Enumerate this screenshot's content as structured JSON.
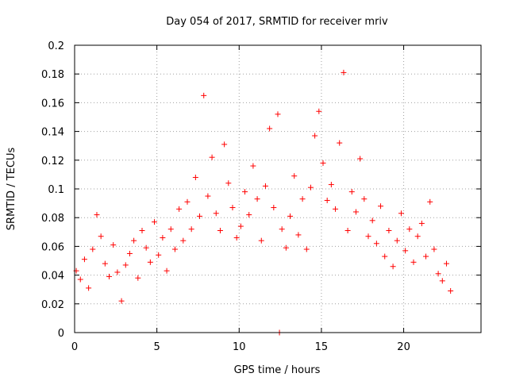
{
  "chart_data": {
    "type": "scatter",
    "title": "Day 054 of 2017, SRMTID for receiver mriv",
    "xlabel": "GPS time / hours",
    "ylabel": "SRMTID / TECUs",
    "xlim": [
      0,
      24.7
    ],
    "ylim": [
      0,
      0.2
    ],
    "x_ticks": [
      0,
      5,
      10,
      15,
      20
    ],
    "x_tick_labels": [
      "0",
      "5",
      "10",
      "15",
      "20"
    ],
    "y_ticks": [
      0,
      0.02,
      0.04,
      0.06,
      0.08,
      0.1,
      0.12,
      0.14,
      0.16,
      0.18,
      0.2
    ],
    "y_tick_labels": [
      "0",
      "0.02",
      "0.04",
      "0.06",
      "0.08",
      "0.1",
      "0.12",
      "0.14",
      "0.16",
      "0.18",
      "0.2"
    ],
    "grid": true,
    "marker": "+",
    "color": "#ff0000",
    "series": [
      {
        "name": "SRMTID",
        "points": [
          [
            0.1,
            0.043
          ],
          [
            0.35,
            0.037
          ],
          [
            0.6,
            0.051
          ],
          [
            0.85,
            0.031
          ],
          [
            1.1,
            0.058
          ],
          [
            1.35,
            0.082
          ],
          [
            1.6,
            0.067
          ],
          [
            1.85,
            0.048
          ],
          [
            2.1,
            0.039
          ],
          [
            2.35,
            0.061
          ],
          [
            2.6,
            0.042
          ],
          [
            2.85,
            0.022
          ],
          [
            3.1,
            0.047
          ],
          [
            3.35,
            0.055
          ],
          [
            3.6,
            0.064
          ],
          [
            3.85,
            0.038
          ],
          [
            4.1,
            0.071
          ],
          [
            4.35,
            0.059
          ],
          [
            4.6,
            0.049
          ],
          [
            4.85,
            0.077
          ],
          [
            5.1,
            0.054
          ],
          [
            5.35,
            0.066
          ],
          [
            5.6,
            0.043
          ],
          [
            5.85,
            0.072
          ],
          [
            6.1,
            0.058
          ],
          [
            6.35,
            0.086
          ],
          [
            6.6,
            0.064
          ],
          [
            6.85,
            0.091
          ],
          [
            7.1,
            0.072
          ],
          [
            7.35,
            0.108
          ],
          [
            7.6,
            0.081
          ],
          [
            7.85,
            0.165
          ],
          [
            8.1,
            0.095
          ],
          [
            8.35,
            0.122
          ],
          [
            8.6,
            0.083
          ],
          [
            8.85,
            0.071
          ],
          [
            9.1,
            0.131
          ],
          [
            9.35,
            0.104
          ],
          [
            9.6,
            0.087
          ],
          [
            9.85,
            0.066
          ],
          [
            10.1,
            0.074
          ],
          [
            10.35,
            0.098
          ],
          [
            10.6,
            0.082
          ],
          [
            10.85,
            0.116
          ],
          [
            11.1,
            0.093
          ],
          [
            11.35,
            0.064
          ],
          [
            11.6,
            0.102
          ],
          [
            11.85,
            0.142
          ],
          [
            12.1,
            0.087
          ],
          [
            12.35,
            0.152
          ],
          [
            12.6,
            0.072
          ],
          [
            12.85,
            0.059
          ],
          [
            13.1,
            0.081
          ],
          [
            13.35,
            0.109
          ],
          [
            13.6,
            0.068
          ],
          [
            13.85,
            0.093
          ],
          [
            14.1,
            0.058
          ],
          [
            14.35,
            0.101
          ],
          [
            14.6,
            0.137
          ],
          [
            14.85,
            0.154
          ],
          [
            15.1,
            0.118
          ],
          [
            15.35,
            0.092
          ],
          [
            15.6,
            0.103
          ],
          [
            15.85,
            0.086
          ],
          [
            16.1,
            0.132
          ],
          [
            16.35,
            0.181
          ],
          [
            16.6,
            0.071
          ],
          [
            16.85,
            0.098
          ],
          [
            17.1,
            0.084
          ],
          [
            17.35,
            0.121
          ],
          [
            17.6,
            0.093
          ],
          [
            17.85,
            0.067
          ],
          [
            18.1,
            0.078
          ],
          [
            18.35,
            0.062
          ],
          [
            18.6,
            0.088
          ],
          [
            18.85,
            0.053
          ],
          [
            19.1,
            0.071
          ],
          [
            19.35,
            0.046
          ],
          [
            19.6,
            0.064
          ],
          [
            19.85,
            0.083
          ],
          [
            20.1,
            0.057
          ],
          [
            20.35,
            0.072
          ],
          [
            20.6,
            0.049
          ],
          [
            20.85,
            0.067
          ],
          [
            21.1,
            0.076
          ],
          [
            21.35,
            0.053
          ],
          [
            21.6,
            0.091
          ],
          [
            21.85,
            0.058
          ],
          [
            22.1,
            0.041
          ],
          [
            22.35,
            0.036
          ],
          [
            22.6,
            0.048
          ],
          [
            22.85,
            0.029
          ],
          [
            12.45,
            0.0
          ]
        ]
      }
    ]
  }
}
